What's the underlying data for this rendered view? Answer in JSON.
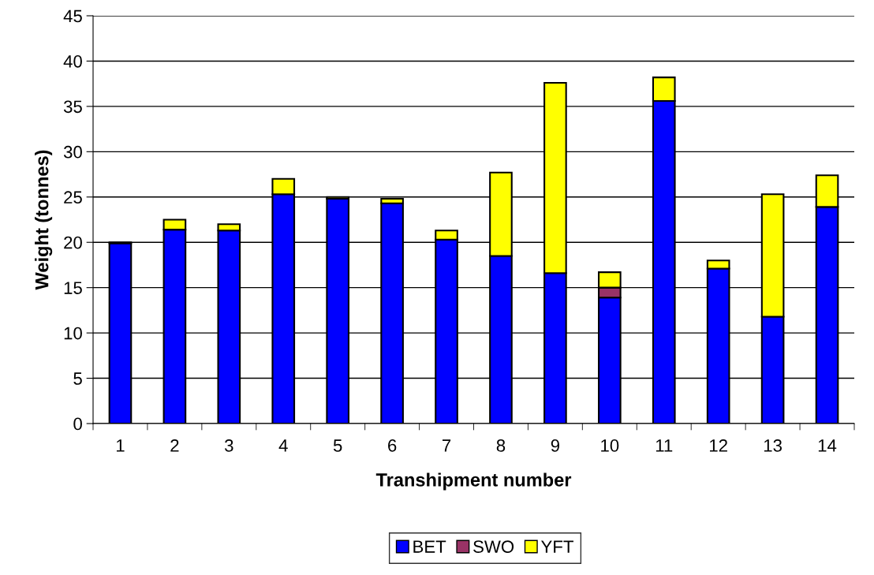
{
  "chart_data": {
    "type": "bar",
    "stacked": true,
    "xlabel": "Transhipment number",
    "ylabel": "Weight (tonnes)",
    "categories": [
      "1",
      "2",
      "3",
      "4",
      "5",
      "6",
      "7",
      "8",
      "9",
      "10",
      "11",
      "12",
      "13",
      "14"
    ],
    "series": [
      {
        "name": "BET",
        "color": "#0000ff",
        "values": [
          19.9,
          21.4,
          21.3,
          25.3,
          24.8,
          24.3,
          20.3,
          18.5,
          16.6,
          13.9,
          35.6,
          17.1,
          11.8,
          23.9
        ]
      },
      {
        "name": "SWO",
        "color": "#993366",
        "values": [
          null,
          null,
          null,
          null,
          null,
          null,
          null,
          null,
          null,
          1.1,
          null,
          null,
          null,
          null
        ]
      },
      {
        "name": "YFT",
        "color": "#ffff00",
        "values": [
          0.1,
          1.1,
          0.7,
          1.7,
          0.2,
          0.5,
          1.0,
          9.2,
          21.0,
          1.7,
          2.6,
          0.9,
          13.5,
          3.5
        ]
      }
    ],
    "ylim": [
      0,
      45
    ],
    "yticks": [
      0,
      5,
      10,
      15,
      20,
      25,
      30,
      35,
      40,
      45
    ],
    "grid": "y",
    "legend": "bottom"
  }
}
